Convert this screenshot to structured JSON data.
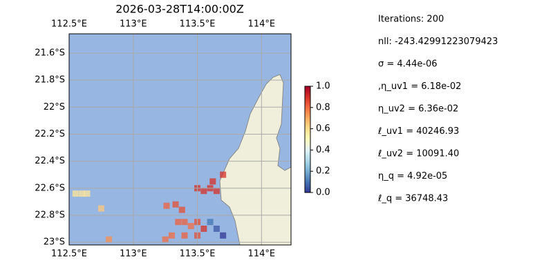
{
  "chart_data": {
    "type": "map",
    "title": "2026-03-28T14:00:00Z",
    "xlim": [
      112.5,
      114.23
    ],
    "ylim": [
      -23.02,
      -21.457
    ],
    "xticks": [
      {
        "value": 112.5,
        "label": "112.5°E"
      },
      {
        "value": 113,
        "label": "113°E"
      },
      {
        "value": 113.5,
        "label": "113.5°E"
      },
      {
        "value": 114,
        "label": "114°E"
      }
    ],
    "yticks": [
      {
        "value": -21.6,
        "label": "21.6°S"
      },
      {
        "value": -21.8,
        "label": "21.8°S"
      },
      {
        "value": -22,
        "label": "22°S"
      },
      {
        "value": -22.2,
        "label": "22.2°S"
      },
      {
        "value": -22.4,
        "label": "22.4°S"
      },
      {
        "value": -22.6,
        "label": "22.6°S"
      },
      {
        "value": -22.8,
        "label": "22.8°S"
      },
      {
        "value": -23,
        "label": "23°S"
      }
    ],
    "grid": true,
    "colormap": "RdYlBu_r",
    "clim": [
      0,
      1
    ],
    "cticks": [
      {
        "value": 0,
        "label": "0.0"
      },
      {
        "value": 0.2,
        "label": "0.2"
      },
      {
        "value": 0.4,
        "label": "0.4"
      },
      {
        "value": 0.6,
        "label": "0.6"
      },
      {
        "value": 0.8,
        "label": "0.8"
      },
      {
        "value": 1,
        "label": "1.0"
      }
    ],
    "cells": {
      "lon": [
        112.55,
        112.6,
        112.64,
        112.75,
        112.81,
        113.26,
        113.33,
        113.38,
        113.5,
        113.55,
        113.6,
        113.62,
        113.65,
        113.7,
        113.35,
        113.4,
        113.45,
        113.5,
        113.55,
        113.6,
        113.65,
        113.7,
        113.3,
        113.4,
        113.5,
        113.25
      ],
      "lat": [
        -22.64,
        -22.64,
        -22.64,
        -22.75,
        -22.98,
        -22.73,
        -22.72,
        -22.76,
        -22.6,
        -22.62,
        -22.6,
        -22.55,
        -22.62,
        -22.5,
        -22.85,
        -22.85,
        -22.88,
        -22.85,
        -22.9,
        -22.85,
        -22.9,
        -22.95,
        -22.95,
        -22.95,
        -22.95,
        -22.98
      ],
      "values": [
        0.58,
        0.58,
        0.58,
        0.65,
        0.75,
        0.82,
        0.85,
        0.85,
        0.9,
        0.9,
        0.9,
        0.9,
        0.9,
        0.9,
        0.82,
        0.82,
        0.8,
        0.85,
        0.9,
        0.1,
        0.05,
        0.0,
        0.8,
        0.82,
        0.85,
        0.8
      ]
    },
    "annotations": [
      "Iterations: 200",
      "nll: -243.42991223079423",
      "σ = 4.44e-06",
      ",η_uv1 = 6.18e-02",
      "η_uv2 = 6.36e-02",
      "ℓ_uv1 = 40246.93",
      "ℓ_uv2 = 10091.40",
      "η_q = 4.92e-05",
      "ℓ_q = 36748.43"
    ]
  }
}
